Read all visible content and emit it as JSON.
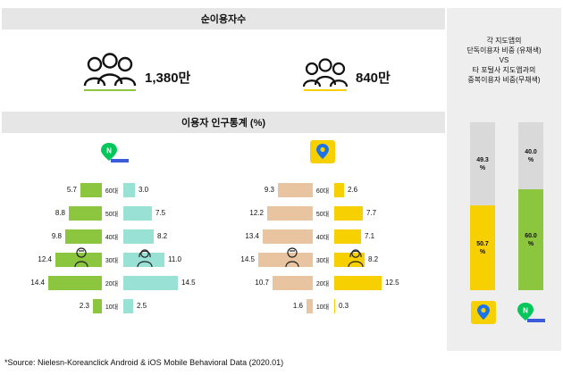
{
  "header": {
    "title": "순이용자수"
  },
  "users": [
    {
      "app": "naver-map",
      "value": "1,380만",
      "icon": "people-group-green-icon"
    },
    {
      "app": "kakao-map",
      "value": "840만",
      "icon": "people-group-yellow-icon"
    }
  ],
  "demographics": {
    "title": "이용자 인구통계 (%)"
  },
  "right_panel": {
    "title_lines": [
      "각 지도앱의",
      "단독이용자 비중 (유채색)",
      "VS",
      "타 포털사 지도앱과의",
      "중복이용자 비중(무채색)"
    ]
  },
  "colors": {
    "naver_male": "#8cc63f",
    "naver_female": "#99e0d5",
    "kakao_male": "#e8c4a0",
    "kakao_female": "#f6d000",
    "overlap": "#d9d9d9",
    "naver_brand": "#03c75a",
    "kakao_brand": "#f9d71c",
    "section_bg": "#e6e6e6"
  },
  "source": "*Source: Nielesn-Koreanclick Android &  iOS Mobile Behavioral Data (2020.01)",
  "chart_data": [
    {
      "type": "bar",
      "app": "naver-map",
      "categories": [
        "60대",
        "50대",
        "40대",
        "30대",
        "20대",
        "10대"
      ],
      "series": [
        {
          "values": [
            5.7,
            8.8,
            9.8,
            12.4,
            14.4,
            2.3
          ],
          "color": "#8cc63f",
          "gender_icon": "male-person-icon"
        },
        {
          "values": [
            3.0,
            7.5,
            8.2,
            11.0,
            14.5,
            2.5
          ],
          "color": "#99e0d5",
          "gender_icon": "female-person-icon"
        }
      ],
      "value_labels": {
        "left": [
          "5.7",
          "8.8",
          "9.8",
          "12.4",
          "14.4",
          "2.3"
        ],
        "right": [
          "3.0",
          "7.5",
          "8.2",
          "11.0",
          "14.5",
          "2.5"
        ]
      }
    },
    {
      "type": "bar",
      "app": "kakao-map",
      "categories": [
        "60대",
        "50대",
        "40대",
        "30대",
        "20대",
        "10대"
      ],
      "series": [
        {
          "values": [
            9.3,
            12.2,
            13.4,
            14.5,
            10.7,
            1.6
          ],
          "color": "#e8c4a0",
          "gender_icon": "male-person-icon"
        },
        {
          "values": [
            2.6,
            7.7,
            7.1,
            8.2,
            12.5,
            0.3
          ],
          "color": "#f6d000",
          "gender_icon": "female-person-icon"
        }
      ],
      "value_labels": {
        "left": [
          "9.3",
          "12.2",
          "13.4",
          "14.5",
          "10.7",
          "1.6"
        ],
        "right": [
          "2.6",
          "7.7",
          "7.1",
          "8.2",
          "12.5",
          "0.3"
        ]
      }
    },
    {
      "type": "bar",
      "stacked": true,
      "categories": [
        "kakao-map",
        "naver-map"
      ],
      "series": [
        {
          "role": "exclusive",
          "values": [
            50.7,
            60.0
          ],
          "labels": [
            "50.7\n%",
            "60.0\n%"
          ],
          "colors": [
            "#f6d000",
            "#8cc63f"
          ]
        },
        {
          "role": "overlap",
          "values": [
            49.3,
            40.0
          ],
          "labels": [
            "49.3\n%",
            "40.0\n%"
          ],
          "color": "#d9d9d9"
        }
      ]
    }
  ]
}
